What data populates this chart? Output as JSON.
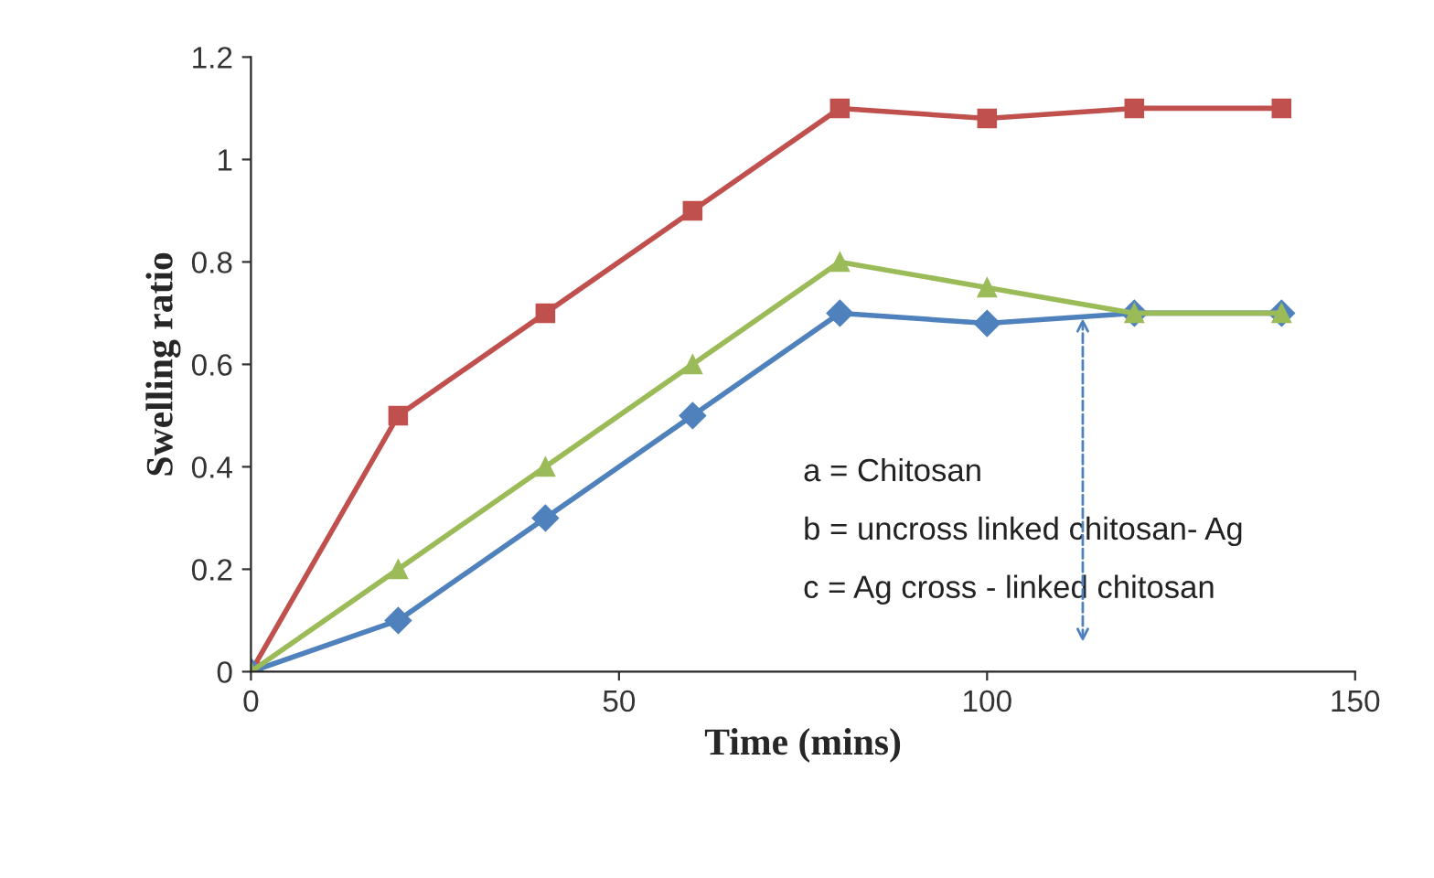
{
  "chart_data": {
    "type": "line",
    "xlabel": "Time (mins)",
    "ylabel": "Swelling ratio",
    "x": [
      0,
      20,
      40,
      60,
      80,
      100,
      120,
      140
    ],
    "series": [
      {
        "color": "#c0504d",
        "marker": "square",
        "values": [
          0,
          0.5,
          0.7,
          0.9,
          1.1,
          1.08,
          1.1,
          1.1
        ]
      },
      {
        "color": "#4f81bd",
        "marker": "diamond",
        "values": [
          0,
          0.1,
          0.3,
          0.5,
          0.7,
          0.68,
          0.7,
          0.7
        ]
      },
      {
        "color": "#9bbb59",
        "marker": "triangle",
        "values": [
          0,
          0.2,
          0.4,
          0.6,
          0.8,
          0.75,
          0.7,
          0.7
        ]
      }
    ],
    "xlim": [
      0,
      150
    ],
    "xticks": [
      0,
      50,
      100,
      150
    ],
    "ylim": [
      0,
      1.2
    ],
    "yticks": [
      0,
      0.2,
      0.4,
      0.6,
      0.8,
      1,
      1.2
    ],
    "grid": false,
    "legend": false,
    "annotations": [
      "a = Chitosan",
      "b = uncross linked chitosan- Ag",
      {
        "text": "c = Ag cross - linked chitosan",
        "x": 113,
        "y": 0.7
      }
    ]
  }
}
